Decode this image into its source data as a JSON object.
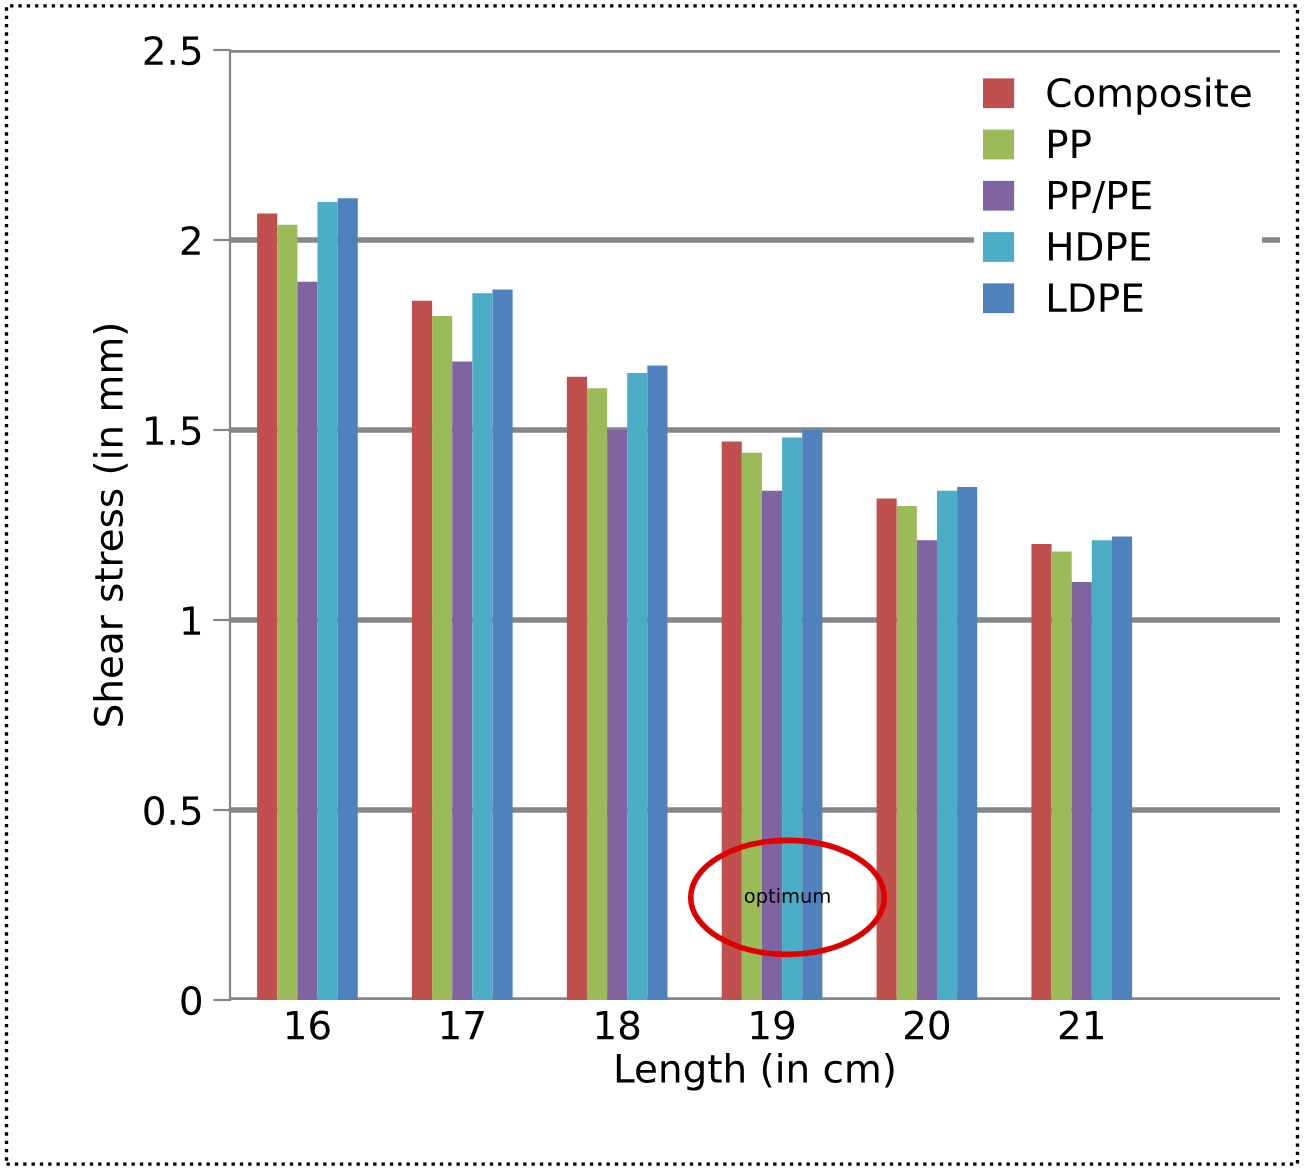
{
  "chart_data": {
    "type": "bar",
    "xlabel": "Length (in cm)",
    "ylabel": "Shear stress (in mm)",
    "categories": [
      "16",
      "17",
      "18",
      "19",
      "20",
      "21"
    ],
    "series": [
      {
        "name": "Composite",
        "color": "#c0504d",
        "values": [
          2.07,
          1.84,
          1.64,
          1.47,
          1.32,
          1.2
        ]
      },
      {
        "name": "PP",
        "color": "#9bbb59",
        "values": [
          2.04,
          1.8,
          1.61,
          1.44,
          1.3,
          1.18
        ]
      },
      {
        "name": "PP/PE",
        "color": "#8064a2",
        "values": [
          1.89,
          1.68,
          1.5,
          1.34,
          1.21,
          1.1
        ]
      },
      {
        "name": "HDPE",
        "color": "#4bacc6",
        "values": [
          2.1,
          1.86,
          1.65,
          1.48,
          1.34,
          1.21
        ]
      },
      {
        "name": "LDPE",
        "color": "#4f81bd",
        "values": [
          2.11,
          1.87,
          1.67,
          1.5,
          1.35,
          1.22
        ]
      }
    ],
    "ylim": [
      0,
      2.5
    ],
    "yticks": [
      0,
      {
        "value": 0.5,
        "label": "0.5"
      },
      1,
      {
        "value": 1.5,
        "label": "1.5"
      },
      2,
      {
        "value": 2.5,
        "label": "2.5"
      }
    ],
    "grid": "y",
    "legend": "top right",
    "annotations": [
      {
        "text": "optimum",
        "x": "19",
        "y": 0.27
      }
    ]
  }
}
